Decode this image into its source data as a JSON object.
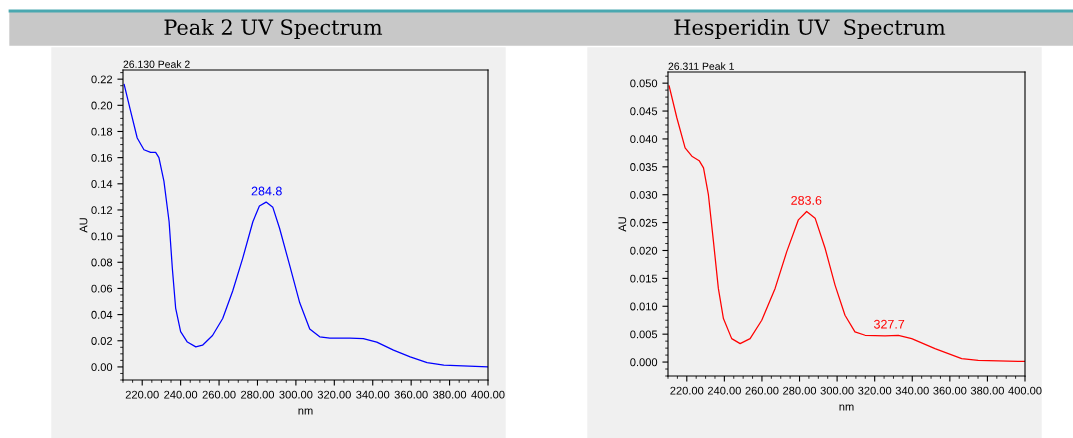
{
  "chart_data": [
    {
      "type": "line",
      "title": "Peak 2 UV Spectrum",
      "xlabel": "nm",
      "ylabel": "AU",
      "xlim": [
        210,
        400
      ],
      "ylim": [
        -0.01,
        0.227
      ],
      "xticks": [
        {
          "value": 220,
          "label": "220.00"
        },
        {
          "value": 240,
          "label": "240.00"
        },
        {
          "value": 260,
          "label": "260.00"
        },
        {
          "value": 280,
          "label": "280.00"
        },
        {
          "value": 300,
          "label": "300.00"
        },
        {
          "value": 320,
          "label": "320.00"
        },
        {
          "value": 340,
          "label": "340.00"
        },
        {
          "value": 360,
          "label": "360.00"
        },
        {
          "value": 380,
          "label": "380.00"
        },
        {
          "value": 400,
          "label": "400.00"
        }
      ],
      "yticks": [
        {
          "value": 0,
          "label": "0.00"
        },
        {
          "value": 0.02,
          "label": "0.02"
        },
        {
          "value": 0.04,
          "label": "0.04"
        },
        {
          "value": 0.06,
          "label": "0.06"
        },
        {
          "value": 0.08,
          "label": "0.08"
        },
        {
          "value": 0.1,
          "label": "0.10"
        },
        {
          "value": 0.12,
          "label": "0.12"
        },
        {
          "value": 0.14,
          "label": "0.14"
        },
        {
          "value": 0.16,
          "label": "0.16"
        },
        {
          "value": 0.18,
          "label": "0.18"
        },
        {
          "value": 0.2,
          "label": "0.20"
        },
        {
          "value": 0.22,
          "label": "0.22"
        }
      ],
      "grid": false,
      "legend": false,
      "marker": "none",
      "line_style": "solid",
      "annotations": [
        "26.130 Peak 2",
        {
          "text": "284.8",
          "x": 284.8,
          "y": 0.126
        }
      ],
      "series": [
        {
          "color": "#0000ff",
          "x": [
            210.6,
            213.9,
            217.4,
            220.9,
            224.4,
            227,
            228.7,
            231.3,
            234,
            235.7,
            237.4,
            240,
            243.5,
            247.9,
            251.4,
            256.6,
            261.9,
            267.1,
            272.3,
            277.6,
            281,
            284.5,
            288,
            291.5,
            296.7,
            302,
            307.2,
            312.4,
            317.7,
            328.1,
            335.1,
            342.1,
            350.8,
            359.5,
            368.3,
            377,
            400
          ],
          "values": [
            0.216,
            0.196,
            0.175,
            0.166,
            0.164,
            0.164,
            0.16,
            0.142,
            0.111,
            0.075,
            0.045,
            0.027,
            0.019,
            0.0153,
            0.0166,
            0.024,
            0.037,
            0.058,
            0.083,
            0.111,
            0.123,
            0.126,
            0.122,
            0.106,
            0.078,
            0.049,
            0.029,
            0.023,
            0.022,
            0.022,
            0.0217,
            0.019,
            0.0128,
            0.0077,
            0.0033,
            0.0013,
            0.0
          ]
        }
      ]
    },
    {
      "type": "line",
      "title": "Hesperidin UV  Spectrum",
      "xlabel": "nm",
      "ylabel": "AU",
      "xlim": [
        210,
        400
      ],
      "ylim": [
        -0.0025,
        0.052
      ],
      "xticks": [
        {
          "value": 220,
          "label": "220.00"
        },
        {
          "value": 240,
          "label": "240.00"
        },
        {
          "value": 260,
          "label": "260.00"
        },
        {
          "value": 280,
          "label": "280.00"
        },
        {
          "value": 300,
          "label": "300.00"
        },
        {
          "value": 320,
          "label": "320.00"
        },
        {
          "value": 340,
          "label": "340.00"
        },
        {
          "value": 360,
          "label": "360.00"
        },
        {
          "value": 380,
          "label": "380.00"
        },
        {
          "value": 400,
          "label": "400.00"
        }
      ],
      "yticks": [
        {
          "value": 0,
          "label": "0.000"
        },
        {
          "value": 0.005,
          "label": "0.005"
        },
        {
          "value": 0.01,
          "label": "0.010"
        },
        {
          "value": 0.015,
          "label": "0.015"
        },
        {
          "value": 0.02,
          "label": "0.020"
        },
        {
          "value": 0.025,
          "label": "0.025"
        },
        {
          "value": 0.03,
          "label": "0.030"
        },
        {
          "value": 0.035,
          "label": "0.035"
        },
        {
          "value": 0.04,
          "label": "0.040"
        },
        {
          "value": 0.045,
          "label": "0.045"
        },
        {
          "value": 0.05,
          "label": "0.050"
        }
      ],
      "grid": false,
      "legend": false,
      "marker": "none",
      "line_style": "solid",
      "annotations": [
        "26.311 Peak 1",
        {
          "text": "283.6",
          "x": 283.6,
          "y": 0.027
        },
        {
          "text": "327.7",
          "x": 327.7,
          "y": 0.0048
        }
      ],
      "series": [
        {
          "color": "#ff0000",
          "x": [
            210.6,
            214.7,
            219.1,
            222.7,
            226.6,
            228.9,
            231.5,
            234.2,
            236.8,
            239.5,
            243.9,
            248.4,
            253.7,
            259.9,
            267,
            273.2,
            279.4,
            283.8,
            288.3,
            293.6,
            298.9,
            304.2,
            309.5,
            314.9,
            325.5,
            332.6,
            339.7,
            352.1,
            359.2,
            366.3,
            375.1,
            400
          ],
          "values": [
            0.0495,
            0.0438,
            0.0384,
            0.0369,
            0.0361,
            0.0348,
            0.03,
            0.0216,
            0.0132,
            0.0078,
            0.0042,
            0.0033,
            0.0042,
            0.0075,
            0.0132,
            0.0198,
            0.0255,
            0.027,
            0.0258,
            0.0204,
            0.0138,
            0.0084,
            0.0054,
            0.0048,
            0.0047,
            0.0048,
            0.0042,
            0.0024,
            0.0015,
            0.0006,
            0.0003,
            0.0001
          ]
        }
      ]
    }
  ]
}
